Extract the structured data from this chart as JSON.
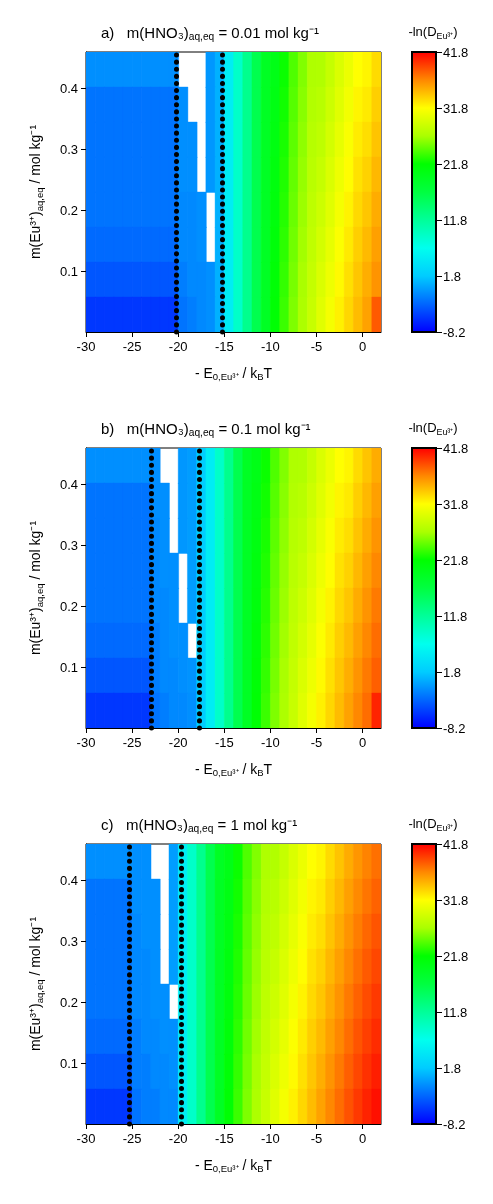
{
  "chart_data": [
    {
      "type": "heatmap",
      "title": "a)   m(HNO₃)$_{aq,eq}$ = 0.01 mol kg⁻¹",
      "xlabel": "- E$_{0,Eu³⁺}$ / k$_{B}$T",
      "ylabel": "m(Eu³⁺)$_{aq,eq}$ / mol kg⁻¹",
      "clabel": "-ln(D$_{Eu³⁺}$)",
      "x": [
        -29.5,
        -28.5,
        -27.5,
        -26.5,
        -25.5,
        -24.5,
        -23.5,
        -22.5,
        -21.5,
        -20.5,
        -19.5,
        -18.5,
        -17.5,
        -16.5,
        -15.5,
        -14.5,
        -13.5,
        -12.5,
        -11.5,
        -10.5,
        -9.5,
        -8.5,
        -7.5,
        -6.5,
        -5.5,
        -4.5,
        -3.5,
        -2.5,
        -1.5,
        -0.5,
        0.5,
        1.5
      ],
      "y": [
        0.43125,
        0.37375,
        0.31625,
        0.25875,
        0.20125,
        0.14375,
        0.08625,
        0.02875
      ],
      "cells": [
        [
          -1.2,
          -1.2,
          -1.2,
          -1.2,
          -1.2,
          -1.2,
          -1.2,
          -1.2,
          -1.2,
          -1.2,
          null,
          null,
          null,
          -0.8,
          0.5,
          5,
          9,
          12.5,
          16,
          19,
          20.1,
          22.1,
          24.1,
          25.6,
          27.1,
          27.2,
          28.4,
          29.6,
          30.7,
          31.8,
          32.2,
          33.3
        ],
        [
          -2.5,
          -2.5,
          -2.5,
          -2.5,
          -2.5,
          -2.5,
          -2.5,
          -2.5,
          -2.5,
          -2.5,
          -1.2,
          null,
          null,
          -0.8,
          0.5,
          5,
          9,
          12.5,
          16,
          19,
          20.3,
          22.3,
          24.3,
          25.8,
          27.3,
          27.6,
          28.8,
          30,
          31.1,
          32.2,
          32.7,
          33.8
        ],
        [
          -2.5,
          -2.5,
          -2.5,
          -2.5,
          -2.5,
          -2.5,
          -2.5,
          -2.5,
          -2.5,
          -2.5,
          -1.2,
          -1.2,
          null,
          -0.8,
          0.5,
          5,
          9,
          12.5,
          16,
          19,
          20.5,
          22.5,
          24.5,
          26,
          27.5,
          28,
          29.2,
          30.4,
          31.5,
          32.6,
          33.2,
          34.3
        ],
        [
          -2.5,
          -2.5,
          -2.5,
          -2.5,
          -2.5,
          -2.5,
          -2.5,
          -2.5,
          -2.5,
          -2.5,
          -1.2,
          -1.2,
          null,
          -0.8,
          0.5,
          5,
          9,
          12.5,
          16,
          19,
          20.7,
          22.7,
          24.7,
          26.2,
          27.7,
          28.4,
          29.6,
          30.8,
          31.9,
          33,
          33.7,
          34.8
        ],
        [
          -2.5,
          -2.5,
          -2.5,
          -2.5,
          -2.5,
          -2.5,
          -2.5,
          -2.5,
          -2.5,
          -2.5,
          -1.5,
          -1.5,
          -1.2,
          null,
          0.5,
          5,
          9,
          12.5,
          16,
          19,
          20.9,
          22.9,
          24.9,
          26.4,
          27.9,
          28.8,
          30,
          31.2,
          32.3,
          33.4,
          34.2,
          35.3
        ],
        [
          -3,
          -3,
          -3,
          -3,
          -3,
          -3,
          -3,
          -3,
          -3,
          -3,
          -1.5,
          -1.5,
          -1.2,
          null,
          0.5,
          5,
          9,
          12.5,
          16,
          19,
          21.1,
          23.1,
          25.1,
          26.6,
          28.1,
          29.2,
          30.4,
          31.6,
          32.7,
          33.8,
          34.7,
          35.8
        ],
        [
          -4,
          -4,
          -4,
          -4,
          -4,
          -4,
          -4,
          -4,
          -4,
          -4,
          -2,
          -1.5,
          -1.5,
          -1.2,
          0.5,
          5,
          9,
          12.5,
          16,
          19,
          21.3,
          23.3,
          25.3,
          26.8,
          28.3,
          29.6,
          30.8,
          32,
          33.1,
          34.2,
          35.2,
          36.3
        ],
        [
          -5.5,
          -5.5,
          -5.5,
          -5.5,
          -5.5,
          -5.5,
          -5.5,
          -5.5,
          -5.5,
          -5.5,
          -2.5,
          -2,
          -1.5,
          -1.2,
          0.5,
          5,
          9,
          12.5,
          16,
          19,
          21.5,
          23.5,
          25.5,
          27,
          28.5,
          30,
          31.2,
          32.4,
          33.5,
          34.6,
          35.7,
          38.5
        ]
      ],
      "xlim": [
        -30,
        2
      ],
      "xticks": [
        -30,
        -25,
        -20,
        -15,
        -10,
        -5,
        0
      ],
      "ylim": [
        0,
        0.46
      ],
      "yticks": [
        0.1,
        0.2,
        0.3,
        0.4
      ],
      "clim": [
        -8.2,
        41.8
      ],
      "cticks": [
        -8.2,
        1.8,
        11.8,
        21.8,
        31.8,
        41.8
      ],
      "ref_lines": [
        {
          "axis": "x",
          "value": -20.2,
          "line_style": "dotted",
          "color": "#000000"
        },
        {
          "axis": "x",
          "value": -15.2,
          "line_style": "dotted",
          "color": "#000000"
        }
      ]
    },
    {
      "type": "heatmap",
      "title": "b)   m(HNO₃)$_{aq,eq}$ = 0.1 mol kg⁻¹",
      "xlabel": "- E$_{0,Eu³⁺}$ / k$_{B}$T",
      "ylabel": "m(Eu³⁺)$_{aq,eq}$ / mol kg⁻¹",
      "clabel": "-ln(D$_{Eu³⁺}$)",
      "x": [
        -29.5,
        -28.5,
        -27.5,
        -26.5,
        -25.5,
        -24.5,
        -23.5,
        -22.5,
        -21.5,
        -20.5,
        -19.5,
        -18.5,
        -17.5,
        -16.5,
        -15.5,
        -14.5,
        -13.5,
        -12.5,
        -11.5,
        -10.5,
        -9.5,
        -8.5,
        -7.5,
        -6.5,
        -5.5,
        -4.5,
        -3.5,
        -2.5,
        -1.5,
        -0.5,
        0.5,
        1.5
      ],
      "y": [
        0.43125,
        0.37375,
        0.31625,
        0.25875,
        0.20125,
        0.14375,
        0.08625,
        0.02875
      ],
      "cells": [
        [
          -1.2,
          -1.2,
          -1.2,
          -1.2,
          -1.2,
          -1.2,
          -1.2,
          -1.2,
          null,
          null,
          -0.8,
          -0.5,
          2,
          5,
          9,
          12.5,
          16,
          19,
          20.1,
          22.1,
          24.1,
          25.6,
          27.1,
          27.2,
          28.4,
          29.6,
          30.7,
          31.8,
          32.2,
          33.3,
          34.3,
          35.3
        ],
        [
          -2.5,
          -2.5,
          -2.5,
          -2.5,
          -2.5,
          -2.5,
          -2.5,
          -1.2,
          -1.2,
          null,
          -0.8,
          -0.5,
          2,
          5,
          9,
          12.5,
          16,
          19,
          20.3,
          22.3,
          24.3,
          25.8,
          27.3,
          27.6,
          28.8,
          30,
          31.1,
          32.2,
          32.7,
          33.8,
          34.8,
          35.8
        ],
        [
          -2.5,
          -2.5,
          -2.5,
          -2.5,
          -2.5,
          -2.5,
          -2.5,
          -1.5,
          -1.2,
          null,
          -0.8,
          -0.5,
          2,
          5,
          9,
          12.5,
          16,
          19,
          20.5,
          22.5,
          24.5,
          26,
          27.5,
          28,
          29.2,
          30.4,
          31.5,
          32.6,
          33.2,
          34.3,
          35.3,
          36.3
        ],
        [
          -2.5,
          -2.5,
          -2.5,
          -2.5,
          -2.5,
          -2.5,
          -2.5,
          -1.5,
          -1.2,
          -1.2,
          null,
          -0.5,
          2,
          5,
          9,
          12.5,
          16,
          19,
          20.7,
          22.7,
          24.7,
          26.2,
          27.7,
          28.4,
          29.6,
          30.8,
          31.9,
          33,
          33.7,
          34.8,
          35.8,
          36.8
        ],
        [
          -2.5,
          -2.5,
          -2.5,
          -2.5,
          -2.5,
          -2.5,
          -2.5,
          -1.5,
          -1.5,
          -1.2,
          null,
          -0.5,
          2,
          5,
          9,
          12.5,
          16,
          19,
          20.9,
          22.9,
          24.9,
          26.4,
          27.9,
          28.8,
          30,
          31.2,
          32.3,
          33.4,
          34.2,
          35.3,
          36.3,
          37.3
        ],
        [
          -3,
          -3,
          -3,
          -3,
          -3,
          -3,
          -3,
          -2,
          -1.5,
          -1.2,
          -1.2,
          null,
          2,
          5,
          9,
          12.5,
          16,
          19,
          21.1,
          23.1,
          25.1,
          26.6,
          28.1,
          29.2,
          30.4,
          31.6,
          32.7,
          33.8,
          34.7,
          35.8,
          36.8,
          37.8
        ],
        [
          -4,
          -4,
          -4,
          -4,
          -4,
          -4,
          -4,
          -2,
          -1.5,
          -1.5,
          -1.2,
          -1,
          2,
          5,
          9,
          12.5,
          16,
          19,
          21.3,
          23.3,
          25.3,
          26.8,
          28.3,
          29.6,
          30.8,
          32,
          33.1,
          34.2,
          35.2,
          36.3,
          37.3,
          38.3
        ],
        [
          -5.5,
          -5.5,
          -5.5,
          -5.5,
          -5.5,
          -5.5,
          -5.5,
          -2.5,
          -2,
          -1.5,
          -1.5,
          -1.2,
          2,
          5,
          9,
          12.5,
          16,
          19,
          21.5,
          23.5,
          25.5,
          27,
          28.5,
          30,
          31.2,
          32.4,
          33.5,
          34.6,
          35.7,
          36.8,
          37.8,
          40.5
        ]
      ],
      "xlim": [
        -30,
        2
      ],
      "xticks": [
        -30,
        -25,
        -20,
        -15,
        -10,
        -5,
        0
      ],
      "ylim": [
        0,
        0.46
      ],
      "yticks": [
        0.1,
        0.2,
        0.3,
        0.4
      ],
      "clim": [
        -8.2,
        41.8
      ],
      "cticks": [
        -8.2,
        1.8,
        11.8,
        21.8,
        31.8,
        41.8
      ],
      "ref_lines": [
        {
          "axis": "x",
          "value": -22.9,
          "line_style": "dotted",
          "color": "#000000"
        },
        {
          "axis": "x",
          "value": -17.7,
          "line_style": "dotted",
          "color": "#000000"
        }
      ]
    },
    {
      "type": "heatmap",
      "title": "c)   m(HNO₃)$_{aq,eq}$ = 1 mol kg⁻¹",
      "xlabel": "- E$_{0,Eu³⁺}$ / k$_{B}$T",
      "ylabel": "m(Eu³⁺)$_{aq,eq}$ / mol kg⁻¹",
      "clabel": "-ln(D$_{Eu³⁺}$)",
      "x": [
        -29.5,
        -28.5,
        -27.5,
        -26.5,
        -25.5,
        -24.5,
        -23.5,
        -22.5,
        -21.5,
        -20.5,
        -19.5,
        -18.5,
        -17.5,
        -16.5,
        -15.5,
        -14.5,
        -13.5,
        -12.5,
        -11.5,
        -10.5,
        -9.5,
        -8.5,
        -7.5,
        -6.5,
        -5.5,
        -4.5,
        -3.5,
        -2.5,
        -1.5,
        -0.5,
        0.5,
        1.5
      ],
      "y": [
        0.43125,
        0.37375,
        0.31625,
        0.25875,
        0.20125,
        0.14375,
        0.08625,
        0.02875
      ],
      "cells": [
        [
          -1.2,
          -1.2,
          -1.2,
          -1.2,
          -1.2,
          -1.2,
          -1.2,
          null,
          null,
          -0.5,
          5,
          9,
          12.5,
          16,
          19,
          20.1,
          22.1,
          24.1,
          25.6,
          27.1,
          27.2,
          28.4,
          29.6,
          30.7,
          31.8,
          32.2,
          33.3,
          34.3,
          35.3,
          36.2,
          37,
          37.7
        ],
        [
          -2.5,
          -2.5,
          -2.5,
          -2.5,
          -2.5,
          -1.2,
          -1.2,
          -1.2,
          null,
          -0.5,
          5,
          9,
          12.5,
          16,
          19,
          20.3,
          22.3,
          24.3,
          25.8,
          27.3,
          27.6,
          28.8,
          30,
          31.1,
          32.2,
          32.7,
          33.8,
          34.8,
          35.8,
          36.7,
          37.5,
          38.2
        ],
        [
          -2.5,
          -2.5,
          -2.5,
          -2.5,
          -2.5,
          -1.5,
          -1.2,
          -1.2,
          null,
          -0.5,
          5,
          9,
          12.5,
          16,
          19,
          20.5,
          22.5,
          24.5,
          26,
          27.5,
          28,
          29.2,
          30.4,
          31.5,
          32.6,
          33.2,
          34.3,
          35.3,
          36.3,
          37.2,
          38,
          38.7
        ],
        [
          -2.5,
          -2.5,
          -2.5,
          -2.5,
          -2.5,
          -1.5,
          -1.5,
          -1.2,
          null,
          -0.5,
          5,
          9,
          12.5,
          16,
          19,
          20.7,
          22.7,
          24.7,
          26.2,
          27.7,
          28.4,
          29.6,
          30.8,
          31.9,
          33,
          33.7,
          34.8,
          35.8,
          36.8,
          37.7,
          38.5,
          39.2
        ],
        [
          -2.5,
          -2.5,
          -2.5,
          -2.5,
          -2.5,
          -1.5,
          -1.5,
          -1.2,
          -1.2,
          null,
          5,
          9,
          12.5,
          16,
          19,
          20.9,
          22.9,
          24.9,
          26.4,
          27.9,
          28.8,
          30,
          31.2,
          32.3,
          33.4,
          34.2,
          35.3,
          36.3,
          37.3,
          38.2,
          39,
          39.7
        ],
        [
          -3,
          -3,
          -3,
          -3,
          -3,
          -2,
          -1.5,
          -1.5,
          -1.2,
          -1.2,
          5,
          9,
          12.5,
          16,
          19,
          21.1,
          23.1,
          25.1,
          26.6,
          28.1,
          29.2,
          30.4,
          31.6,
          32.7,
          33.8,
          34.7,
          35.8,
          36.8,
          37.8,
          38.7,
          39.5,
          40.2
        ],
        [
          -4,
          -4,
          -4,
          -4,
          -4,
          -2,
          -2,
          -1.5,
          -1.5,
          -1.2,
          5,
          9,
          12.5,
          16,
          19,
          21.3,
          23.3,
          25.3,
          26.8,
          28.3,
          29.6,
          30.8,
          32,
          33.1,
          34.2,
          35.2,
          36.3,
          37.3,
          38.3,
          39.2,
          40,
          40.7
        ],
        [
          -5.5,
          -5.5,
          -5.5,
          -5.5,
          -5.5,
          -2.5,
          -2,
          -2,
          -1.5,
          -1.5,
          5,
          9,
          12.5,
          16,
          19,
          21.5,
          23.5,
          25.5,
          27,
          28.5,
          30,
          31.2,
          32.4,
          33.5,
          34.6,
          35.7,
          36.8,
          37.8,
          38.8,
          39.7,
          40.5,
          41.2
        ]
      ],
      "xlim": [
        -30,
        2
      ],
      "xticks": [
        -30,
        -25,
        -20,
        -15,
        -10,
        -5,
        0
      ],
      "ylim": [
        0,
        0.46
      ],
      "yticks": [
        0.1,
        0.2,
        0.3,
        0.4
      ],
      "clim": [
        -8.2,
        41.8
      ],
      "cticks": [
        -8.2,
        1.8,
        11.8,
        21.8,
        31.8,
        41.8
      ],
      "ref_lines": [
        {
          "axis": "x",
          "value": -25.3,
          "line_style": "dotted",
          "color": "#000000"
        },
        {
          "axis": "x",
          "value": -19.7,
          "line_style": "dotted",
          "color": "#000000"
        }
      ]
    }
  ]
}
